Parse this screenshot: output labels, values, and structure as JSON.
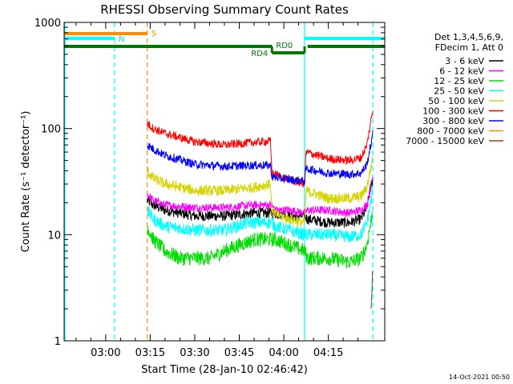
{
  "chart_data": {
    "type": "line",
    "title": "RHESSI Observing Summary Count Rates",
    "xlabel": "Start Time (28-Jan-10 02:46:42)",
    "ylabel": "Count Rate (s⁻¹ detector⁻¹)",
    "yscale": "log",
    "ylim": [
      1,
      1000
    ],
    "xlim_minutes": [
      -14,
      94
    ],
    "ytick_labels": [
      {
        "value": 1,
        "label": "1"
      },
      {
        "value": 10,
        "label": "10"
      },
      {
        "value": 100,
        "label": "100"
      },
      {
        "value": 1000,
        "label": "1000"
      }
    ],
    "xtick_labels": [
      {
        "minute": 0,
        "label": "03:00"
      },
      {
        "minute": 15,
        "label": "03:15"
      },
      {
        "minute": 30,
        "label": "03:30"
      },
      {
        "minute": 45,
        "label": "03:45"
      },
      {
        "minute": 60,
        "label": "04:00"
      },
      {
        "minute": 75,
        "label": "04:15"
      }
    ],
    "legend": {
      "placement": "right",
      "header": [
        "Det 1,3,4,5,6,9,",
        "FDecim 1, Att 0"
      ],
      "entries": [
        {
          "label": "3 - 6 keV",
          "color": "#000000"
        },
        {
          "label": "6 - 12 keV",
          "color": "#ff00ff"
        },
        {
          "label": "12 - 25 keV",
          "color": "#00dd00"
        },
        {
          "label": "25 - 50 keV",
          "color": "#00ffff"
        },
        {
          "label": "50 - 100 keV",
          "color": "#d4d400"
        },
        {
          "label": "100 - 300 keV",
          "color": "#ff0000"
        },
        {
          "label": "300 - 800 keV",
          "color": "#0000ff"
        },
        {
          "label": "800 - 7000 keV",
          "color": "#ff8c00"
        },
        {
          "label": "7000 - 15000 keV",
          "color": "#8b4513"
        }
      ]
    },
    "data_window_minutes": [
      14,
      90
    ],
    "night_start_minute": 67,
    "step_minute": 56,
    "series": [
      {
        "name": "3 - 6 keV",
        "color": "#000000",
        "noise": 0.05,
        "points": [
          [
            14,
            21
          ],
          [
            16,
            19
          ],
          [
            20,
            17
          ],
          [
            30,
            15
          ],
          [
            40,
            15
          ],
          [
            50,
            16
          ],
          [
            56,
            16
          ],
          [
            57,
            16
          ],
          [
            62,
            15
          ],
          [
            67,
            15
          ],
          [
            68,
            14
          ],
          [
            75,
            13
          ],
          [
            82,
            13
          ],
          [
            86,
            14
          ],
          [
            88,
            18
          ],
          [
            89.5,
            30
          ],
          [
            90,
            34
          ]
        ]
      },
      {
        "name": "6 - 12 keV",
        "color": "#ff00ff",
        "noise": 0.04,
        "points": [
          [
            14,
            24
          ],
          [
            16,
            21
          ],
          [
            20,
            19
          ],
          [
            30,
            18
          ],
          [
            40,
            18
          ],
          [
            50,
            19
          ],
          [
            56,
            19
          ],
          [
            57,
            17
          ],
          [
            62,
            17
          ],
          [
            67,
            16
          ],
          [
            68,
            17
          ],
          [
            75,
            17
          ],
          [
            82,
            16
          ],
          [
            86,
            17
          ],
          [
            88,
            19
          ],
          [
            89.5,
            30
          ],
          [
            90,
            36
          ]
        ]
      },
      {
        "name": "12 - 25 keV",
        "color": "#00dd00",
        "noise": 0.07,
        "points": [
          [
            14,
            12
          ],
          [
            16,
            9
          ],
          [
            20,
            7
          ],
          [
            25,
            6
          ],
          [
            35,
            6
          ],
          [
            40,
            7
          ],
          [
            45,
            8
          ],
          [
            50,
            9
          ],
          [
            56,
            9
          ],
          [
            57,
            9
          ],
          [
            62,
            8
          ],
          [
            67,
            7
          ],
          [
            68,
            6
          ],
          [
            75,
            6
          ],
          [
            82,
            5.5
          ],
          [
            86,
            6
          ],
          [
            88,
            8
          ],
          [
            89.5,
            14
          ],
          [
            90,
            18
          ]
        ]
      },
      {
        "name": "25 - 50 keV",
        "color": "#00ffff",
        "noise": 0.06,
        "points": [
          [
            14,
            17
          ],
          [
            16,
            14
          ],
          [
            20,
            12
          ],
          [
            30,
            11
          ],
          [
            40,
            11
          ],
          [
            48,
            13
          ],
          [
            56,
            13
          ],
          [
            57,
            12
          ],
          [
            62,
            11
          ],
          [
            67,
            10
          ],
          [
            68,
            10
          ],
          [
            75,
            10
          ],
          [
            82,
            9.5
          ],
          [
            86,
            10
          ],
          [
            88,
            13
          ],
          [
            89.5,
            22
          ],
          [
            90,
            28
          ]
        ]
      },
      {
        "name": "50 - 100 keV",
        "color": "#d4d400",
        "noise": 0.05,
        "points": [
          [
            14,
            40
          ],
          [
            16,
            34
          ],
          [
            20,
            30
          ],
          [
            30,
            26
          ],
          [
            40,
            26
          ],
          [
            50,
            28
          ],
          [
            55.5,
            30
          ],
          [
            56,
            16
          ],
          [
            62,
            14
          ],
          [
            67,
            13
          ],
          [
            67.5,
            26
          ],
          [
            75,
            22
          ],
          [
            82,
            22
          ],
          [
            86,
            23
          ],
          [
            88,
            28
          ],
          [
            89.5,
            45
          ],
          [
            90,
            55
          ]
        ]
      },
      {
        "name": "100 - 300 keV",
        "color": "#ff0000",
        "noise": 0.04,
        "points": [
          [
            14,
            112
          ],
          [
            16,
            100
          ],
          [
            20,
            90
          ],
          [
            30,
            75
          ],
          [
            40,
            70
          ],
          [
            50,
            74
          ],
          [
            55.5,
            76
          ],
          [
            56,
            38
          ],
          [
            62,
            33
          ],
          [
            67,
            30
          ],
          [
            67.5,
            60
          ],
          [
            75,
            52
          ],
          [
            82,
            50
          ],
          [
            86,
            53
          ],
          [
            88,
            70
          ],
          [
            89.5,
            125
          ],
          [
            90,
            150
          ]
        ]
      },
      {
        "name": "300 - 800 keV",
        "color": "#0000ff",
        "noise": 0.04,
        "points": [
          [
            14,
            70
          ],
          [
            16,
            64
          ],
          [
            20,
            56
          ],
          [
            30,
            46
          ],
          [
            40,
            44
          ],
          [
            50,
            45
          ],
          [
            55.5,
            45
          ],
          [
            56,
            35
          ],
          [
            62,
            33
          ],
          [
            67,
            32
          ],
          [
            67.5,
            42
          ],
          [
            75,
            38
          ],
          [
            82,
            37
          ],
          [
            86,
            38
          ],
          [
            88,
            46
          ],
          [
            89.5,
            75
          ],
          [
            90,
            90
          ]
        ]
      },
      {
        "name": "7000 - 15000 keV",
        "color": "#8b4513",
        "noise": 0.0,
        "points": [
          [
            89.4,
            2
          ],
          [
            89.7,
            3
          ],
          [
            90,
            6
          ]
        ]
      }
    ],
    "state_bars": [
      {
        "label": "S",
        "color": "#ff8c00",
        "minute_start": -14,
        "minute_end": 14,
        "level": "upper"
      },
      {
        "label": "N",
        "color": "#00ffff",
        "minute_start": -14,
        "minute_end": 3,
        "level": "middle"
      },
      {
        "label": "N",
        "color": "#00ffff",
        "minute_start": 67,
        "minute_end": 94,
        "level": "middle"
      },
      {
        "label": "RD0",
        "color": "#007700",
        "minute_start": -14,
        "minute_end": 56,
        "level": "lower"
      },
      {
        "label": "RD0",
        "color": "#007700",
        "minute_start": 68,
        "minute_end": 94,
        "level": "lower"
      },
      {
        "label": "RD4",
        "color": "#007700",
        "minute_start": 56,
        "minute_end": 67,
        "level": "step"
      }
    ],
    "state_text_labels": {
      "s": "S",
      "n": "N",
      "rd0": "RD0",
      "rd4": "RD4"
    },
    "vertical_markers": [
      {
        "minute": -14,
        "color": "#00ffff",
        "style": "solid"
      },
      {
        "minute": 3,
        "color": "#00ffff",
        "style": "dashed"
      },
      {
        "minute": 14,
        "color": "#ff8c00",
        "style": "dashed"
      },
      {
        "minute": 67,
        "color": "#00ffff",
        "style": "solid"
      },
      {
        "minute": 90,
        "color": "#00ffff",
        "style": "dashed"
      }
    ],
    "footer_timestamp": "14-Oct-2021 00:50"
  }
}
